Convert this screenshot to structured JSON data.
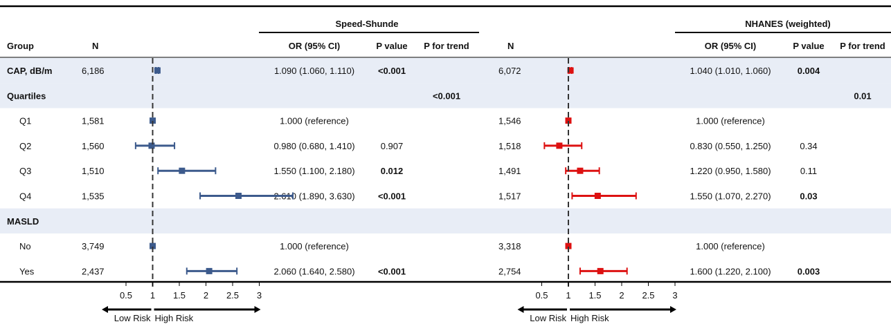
{
  "chart_data": {
    "type": "forest",
    "panels": [
      {
        "title": "Speed-Shunde",
        "color": "#3c5a8c",
        "rows": [
          {
            "label": "CAP, dB/m",
            "kind": "main",
            "n": "6,186",
            "or": 1.09,
            "lo": 1.06,
            "hi": 1.11,
            "text": "1.090 (1.060, 1.110)",
            "p": "<0.001",
            "p_bold": true,
            "trend": ""
          },
          {
            "label": "Quartiles",
            "kind": "header",
            "n": "",
            "text": "",
            "p": "",
            "p_bold": false,
            "trend": "<0.001"
          },
          {
            "label": "Q1",
            "kind": "sub",
            "n": "1,581",
            "or": 1.0,
            "lo": 1.0,
            "hi": 1.0,
            "text": "1.000 (reference)",
            "p": "",
            "p_bold": false,
            "trend": ""
          },
          {
            "label": "Q2",
            "kind": "sub",
            "n": "1,560",
            "or": 0.98,
            "lo": 0.68,
            "hi": 1.41,
            "text": "0.980 (0.680, 1.410)",
            "p": "0.907",
            "p_bold": false,
            "trend": ""
          },
          {
            "label": "Q3",
            "kind": "sub",
            "n": "1,510",
            "or": 1.55,
            "lo": 1.1,
            "hi": 2.18,
            "text": "1.550 (1.100, 2.180)",
            "p": "0.012",
            "p_bold": true,
            "trend": ""
          },
          {
            "label": "Q4",
            "kind": "sub",
            "n": "1,535",
            "or": 2.61,
            "lo": 1.89,
            "hi": 3.63,
            "text": "2.610 (1.890, 3.630)",
            "p": "<0.001",
            "p_bold": true,
            "trend": ""
          },
          {
            "label": "MASLD",
            "kind": "header",
            "n": "",
            "text": "",
            "p": "",
            "p_bold": false,
            "trend": ""
          },
          {
            "label": "No",
            "kind": "sub",
            "n": "3,749",
            "or": 1.0,
            "lo": 1.0,
            "hi": 1.0,
            "text": "1.000 (reference)",
            "p": "",
            "p_bold": false,
            "trend": ""
          },
          {
            "label": "Yes",
            "kind": "sub",
            "n": "2,437",
            "or": 2.06,
            "lo": 1.64,
            "hi": 2.58,
            "text": "2.060 (1.640, 2.580)",
            "p": "<0.001",
            "p_bold": true,
            "trend": ""
          }
        ]
      },
      {
        "title": "NHANES (weighted)",
        "color": "#dd1111",
        "rows": [
          {
            "n": "6,072",
            "or": 1.04,
            "lo": 1.01,
            "hi": 1.06,
            "text": "1.040 (1.010, 1.060)",
            "p": "0.004",
            "p_bold": true,
            "trend": ""
          },
          {
            "n": "",
            "text": "",
            "p": "",
            "p_bold": false,
            "trend": "0.01"
          },
          {
            "n": "1,546",
            "or": 1.0,
            "lo": 1.0,
            "hi": 1.0,
            "text": "1.000 (reference)",
            "p": "",
            "p_bold": false,
            "trend": ""
          },
          {
            "n": "1,518",
            "or": 0.83,
            "lo": 0.55,
            "hi": 1.25,
            "text": "0.830 (0.550, 1.250)",
            "p": "0.34",
            "p_bold": false,
            "trend": ""
          },
          {
            "n": "1,491",
            "or": 1.22,
            "lo": 0.95,
            "hi": 1.58,
            "text": "1.220 (0.950, 1.580)",
            "p": "0.11",
            "p_bold": false,
            "trend": ""
          },
          {
            "n": "1,517",
            "or": 1.55,
            "lo": 1.07,
            "hi": 2.27,
            "text": "1.550 (1.070, 2.270)",
            "p": "0.03",
            "p_bold": true,
            "trend": ""
          },
          {
            "n": "",
            "text": "",
            "p": "",
            "p_bold": false,
            "trend": ""
          },
          {
            "n": "3,318",
            "or": 1.0,
            "lo": 1.0,
            "hi": 1.0,
            "text": "1.000 (reference)",
            "p": "",
            "p_bold": false,
            "trend": ""
          },
          {
            "n": "2,754",
            "or": 1.6,
            "lo": 1.22,
            "hi": 2.1,
            "text": "1.600 (1.220, 2.100)",
            "p": "0.003",
            "p_bold": true,
            "trend": ""
          }
        ]
      }
    ],
    "columns": {
      "group": "Group",
      "n": "N",
      "or": "OR (95% CI)",
      "p": "P value",
      "trend": "P for trend"
    },
    "x_ticks": [
      "0.5",
      "1",
      "1.5",
      "2",
      "2.5",
      "3"
    ],
    "x_tick_values": [
      0.5,
      1,
      1.5,
      2,
      2.5,
      3
    ],
    "xlim": [
      0.5,
      3
    ],
    "reference_line": 1,
    "arrow_labels": {
      "left": "Low Risk",
      "right": "High Risk"
    },
    "shaded_row_color": "#e8edf6"
  }
}
